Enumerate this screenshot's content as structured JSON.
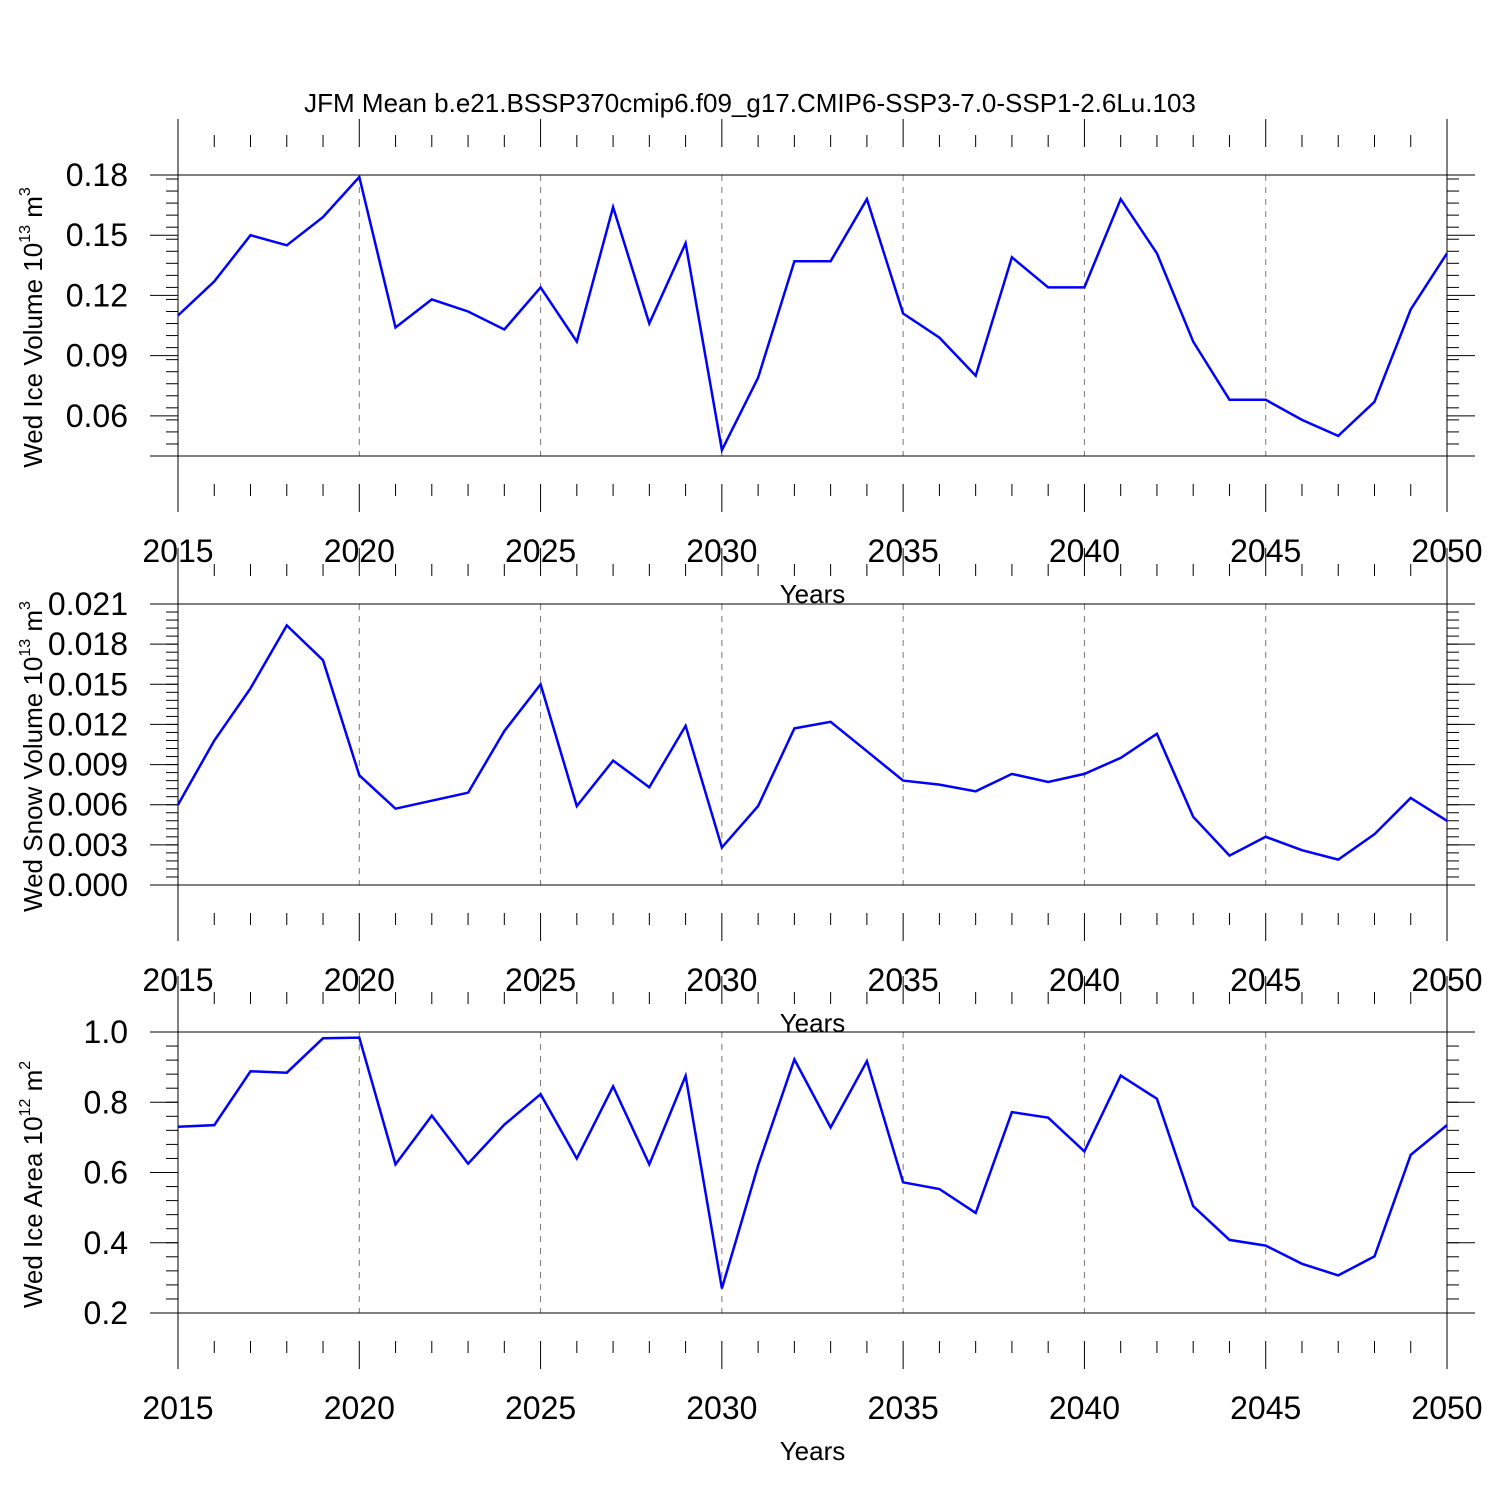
{
  "chart_data": {
    "title": "JFM Mean b.e21.BSSP370cmip6.f09_g17.CMIP6-SSP3-7.0-SSP1-2.6Lu.103",
    "line_color": "#0000ff",
    "panels": [
      {
        "type": "line",
        "series_name": "Wed Ice Volume",
        "ylabel": "Wed Ice Volume 10",
        "ylabel_exp": "13",
        "ylabel_unit": " m",
        "ylabel_unit_exp": "3",
        "xlabel": "Years",
        "xlim": [
          2015,
          2050
        ],
        "ylim": [
          0.04,
          0.18
        ],
        "yticks": [
          0.06,
          0.09,
          0.12,
          0.15,
          0.18
        ],
        "ytick_labels": [
          "0.06",
          "0.09",
          "0.12",
          "0.15",
          "0.18"
        ],
        "xticks": [
          2015,
          2020,
          2025,
          2030,
          2035,
          2040,
          2045,
          2050
        ],
        "xtick_labels": [
          "2015",
          "2020",
          "2025",
          "2030",
          "2035",
          "2040",
          "2045",
          "2050"
        ],
        "x": [
          2015,
          2016,
          2017,
          2018,
          2019,
          2020,
          2021,
          2022,
          2023,
          2024,
          2025,
          2026,
          2027,
          2028,
          2029,
          2030,
          2031,
          2032,
          2033,
          2034,
          2035,
          2036,
          2037,
          2038,
          2039,
          2040,
          2041,
          2042,
          2043,
          2044,
          2045,
          2046,
          2047,
          2048,
          2049,
          2050
        ],
        "values": [
          0.11,
          0.127,
          0.15,
          0.145,
          0.159,
          0.179,
          0.104,
          0.118,
          0.112,
          0.103,
          0.124,
          0.097,
          0.164,
          0.106,
          0.146,
          0.043,
          0.079,
          0.137,
          0.137,
          0.168,
          0.111,
          0.099,
          0.08,
          0.139,
          0.124,
          0.124,
          0.168,
          0.141,
          0.097,
          0.068,
          0.068,
          0.058,
          0.05,
          0.067,
          0.113,
          0.141
        ]
      },
      {
        "type": "line",
        "series_name": "Wed Snow Volume",
        "ylabel": "Wed Snow Volume 10",
        "ylabel_exp": "13",
        "ylabel_unit": " m",
        "ylabel_unit_exp": "3",
        "xlabel": "Years",
        "xlim": [
          2015,
          2050
        ],
        "ylim": [
          0.0,
          0.021
        ],
        "yticks": [
          0.0,
          0.003,
          0.006,
          0.009,
          0.012,
          0.015,
          0.018,
          0.021
        ],
        "ytick_labels": [
          "0.000",
          "0.003",
          "0.006",
          "0.009",
          "0.012",
          "0.015",
          "0.018",
          "0.021"
        ],
        "xticks": [
          2015,
          2020,
          2025,
          2030,
          2035,
          2040,
          2045,
          2050
        ],
        "xtick_labels": [
          "2015",
          "2020",
          "2025",
          "2030",
          "2035",
          "2040",
          "2045",
          "2050"
        ],
        "x": [
          2015,
          2016,
          2017,
          2018,
          2019,
          2020,
          2021,
          2022,
          2023,
          2024,
          2025,
          2026,
          2027,
          2028,
          2029,
          2030,
          2031,
          2032,
          2033,
          2034,
          2035,
          2036,
          2037,
          2038,
          2039,
          2040,
          2041,
          2042,
          2043,
          2044,
          2045,
          2046,
          2047,
          2048,
          2049,
          2050
        ],
        "values": [
          0.006,
          0.0108,
          0.0147,
          0.0194,
          0.0168,
          0.0082,
          0.0057,
          0.0063,
          0.0069,
          0.0115,
          0.015,
          0.0059,
          0.0093,
          0.0073,
          0.0119,
          0.0028,
          0.0059,
          0.0117,
          0.0122,
          0.01,
          0.0078,
          0.0075,
          0.007,
          0.0083,
          0.0077,
          0.0083,
          0.0095,
          0.0113,
          0.0051,
          0.0022,
          0.0036,
          0.0026,
          0.0019,
          0.0038,
          0.0065,
          0.0048
        ]
      },
      {
        "type": "line",
        "series_name": "Wed Ice Area",
        "ylabel": "Wed Ice Area 10",
        "ylabel_exp": "12",
        "ylabel_unit": " m",
        "ylabel_unit_exp": "2",
        "xlabel": "Years",
        "xlim": [
          2015,
          2050
        ],
        "ylim": [
          0.2,
          1.0
        ],
        "yticks": [
          0.2,
          0.4,
          0.6,
          0.8,
          1.0
        ],
        "ytick_labels": [
          "0.2",
          "0.4",
          "0.6",
          "0.8",
          "1.0"
        ],
        "xticks": [
          2015,
          2020,
          2025,
          2030,
          2035,
          2040,
          2045,
          2050
        ],
        "xtick_labels": [
          "2015",
          "2020",
          "2025",
          "2030",
          "2035",
          "2040",
          "2045",
          "2050"
        ],
        "x": [
          2015,
          2016,
          2017,
          2018,
          2019,
          2020,
          2021,
          2022,
          2023,
          2024,
          2025,
          2026,
          2027,
          2028,
          2029,
          2030,
          2031,
          2032,
          2033,
          2034,
          2035,
          2036,
          2037,
          2038,
          2039,
          2040,
          2041,
          2042,
          2043,
          2044,
          2045,
          2046,
          2047,
          2048,
          2049,
          2050
        ],
        "values": [
          0.73,
          0.735,
          0.888,
          0.884,
          0.982,
          0.984,
          0.623,
          0.762,
          0.625,
          0.736,
          0.823,
          0.64,
          0.845,
          0.623,
          0.875,
          0.27,
          0.62,
          0.922,
          0.728,
          0.917,
          0.572,
          0.553,
          0.485,
          0.772,
          0.756,
          0.66,
          0.876,
          0.81,
          0.504,
          0.408,
          0.392,
          0.34,
          0.307,
          0.361,
          0.65,
          0.735
        ]
      }
    ]
  }
}
